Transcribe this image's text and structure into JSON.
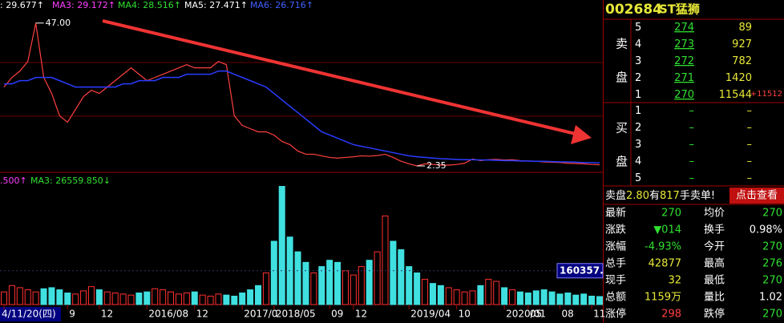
{
  "indicator_bar": [
    ": 29.677↑",
    "MA3: 29.172↑",
    "MA4: 28.516↑",
    "MA5: 27.471↑",
    "MA6: 26.716↑"
  ],
  "chart_data": {
    "type": "line",
    "categories": [
      "4/11/20(四)",
      null,
      null,
      null,
      null,
      null,
      null,
      null,
      "9",
      null,
      null,
      null,
      "12",
      null,
      null,
      null,
      null,
      null,
      "2016/08",
      null,
      null,
      null,
      null,
      null,
      "12",
      null,
      null,
      null,
      null,
      null,
      "2017/0",
      null,
      null,
      null,
      "2018/05",
      null,
      null,
      null,
      null,
      null,
      null,
      "09",
      null,
      null,
      "12",
      null,
      null,
      null,
      null,
      null,
      null,
      "2019/04",
      null,
      null,
      null,
      null,
      null,
      "10",
      null,
      null,
      null,
      null,
      null,
      "2020/01",
      null,
      null,
      "05",
      null,
      null,
      null,
      "08",
      null,
      null,
      null,
      "11",
      null
    ],
    "series": [
      {
        "color": "#ff4040",
        "values": [
          27,
          30,
          32,
          35,
          47,
          30,
          25,
          18,
          16,
          20,
          24,
          26,
          25,
          27,
          29,
          31,
          33,
          31,
          29,
          30,
          31,
          32,
          33,
          34,
          33,
          33,
          33,
          35,
          34,
          18,
          15,
          14,
          13,
          13,
          12,
          10,
          9,
          7,
          6,
          6,
          5.5,
          5,
          4.8,
          5,
          5.2,
          5.5,
          5.4,
          5.6,
          6,
          5,
          3.8,
          3,
          2.35,
          3,
          2.8,
          2.6,
          2.6,
          2.8,
          3.2,
          4.5,
          4,
          4.3,
          4.4,
          4.2,
          4.3,
          4,
          3.9,
          3.8,
          3.6,
          3.5,
          3.4,
          3.2,
          3.1,
          3,
          2.8,
          2.7
        ]
      },
      {
        "color": "#2a3cff",
        "values": [
          28,
          28,
          29,
          29,
          30,
          30,
          30,
          29,
          28,
          27,
          27,
          27,
          27,
          27,
          27,
          28,
          28,
          29,
          29,
          29,
          30,
          30,
          30,
          31,
          31,
          31,
          31,
          32,
          32,
          31,
          30,
          29,
          28,
          27,
          25,
          23,
          21,
          19,
          17,
          15,
          13,
          12,
          11,
          10,
          9,
          8.5,
          8,
          7.5,
          7,
          6.5,
          6,
          5.5,
          5.2,
          5,
          4.8,
          4.6,
          4.5,
          4.4,
          4.3,
          4.3,
          4.2,
          4.2,
          4.1,
          4,
          4,
          3.9,
          3.9,
          3.8,
          3.8,
          3.7,
          3.6,
          3.6,
          3.5,
          3.4,
          3.4,
          3.3
        ]
      }
    ],
    "ylim": [
      1.6,
      51.2
    ],
    "annotations": [
      {
        "index": 4,
        "value": 47,
        "label": "47.00"
      },
      {
        "index": 52,
        "value": 2.35
      }
    ],
    "volume": {
      "header": [
        ".500↑",
        "MA3: 26559.850↓"
      ],
      "up_color": "#ff3030",
      "down_color": "#40e0e0",
      "values": [
        60000,
        90000,
        80000,
        70000,
        60000,
        75000,
        80000,
        70000,
        55000,
        50000,
        65000,
        85000,
        70000,
        60000,
        55000,
        50000,
        45000,
        55000,
        60000,
        75000,
        70000,
        60000,
        50000,
        55000,
        60000,
        45000,
        40000,
        50000,
        45000,
        40000,
        55000,
        70000,
        90000,
        150000,
        300000,
        560000,
        320000,
        250000,
        200000,
        150000,
        180000,
        210000,
        200000,
        160000,
        140000,
        180000,
        210000,
        250000,
        420000,
        300000,
        260000,
        180000,
        150000,
        120000,
        100000,
        90000,
        80000,
        70000,
        60000,
        65000,
        90000,
        120000,
        110000,
        80000,
        70000,
        60000,
        55000,
        65000,
        70000,
        60000,
        50000,
        55000,
        45000,
        50000,
        40000,
        38000
      ],
      "ylim": [
        0,
        600000
      ],
      "marker": {
        "value": 160357,
        "label": "160357."
      }
    }
  },
  "quote": {
    "code": "002684",
    "name": "ST猛狮",
    "sell_label": [
      "卖",
      "盘"
    ],
    "buy_label": [
      "买",
      "盘"
    ],
    "sell": [
      {
        "level": 5,
        "price": 274,
        "volume": 89
      },
      {
        "level": 4,
        "price": 273,
        "volume": 927
      },
      {
        "level": 3,
        "price": 272,
        "volume": 782
      },
      {
        "level": 2,
        "price": 271,
        "volume": 1420
      },
      {
        "level": 1,
        "price": 270,
        "volume": 11544
      }
    ],
    "sell_change": "+11512",
    "buy": [
      {
        "level": 1,
        "price": "–",
        "volume": "–"
      },
      {
        "level": 2,
        "price": "–",
        "volume": "–"
      },
      {
        "level": 3,
        "price": "–",
        "volume": "–"
      },
      {
        "level": 4,
        "price": "–",
        "volume": "–"
      },
      {
        "level": 5,
        "price": "–",
        "volume": "–"
      }
    ],
    "message": [
      "卖盘",
      "2.80",
      "有",
      "817",
      "手卖单!"
    ],
    "button": "点击查看",
    "stats": [
      [
        "最新",
        "270",
        "均价",
        "270"
      ],
      [
        "涨跌",
        "▼014",
        "换手",
        "0.98%"
      ],
      [
        "涨幅",
        "-4.93%",
        "今开",
        "270"
      ],
      [
        "总手",
        "42877",
        "最高",
        "276"
      ],
      [
        "现手",
        "32",
        "最低",
        "270"
      ],
      [
        "总额",
        "1159万",
        "量比",
        "1.02"
      ],
      [
        "涨停",
        "298",
        "跌停",
        "270"
      ]
    ]
  }
}
